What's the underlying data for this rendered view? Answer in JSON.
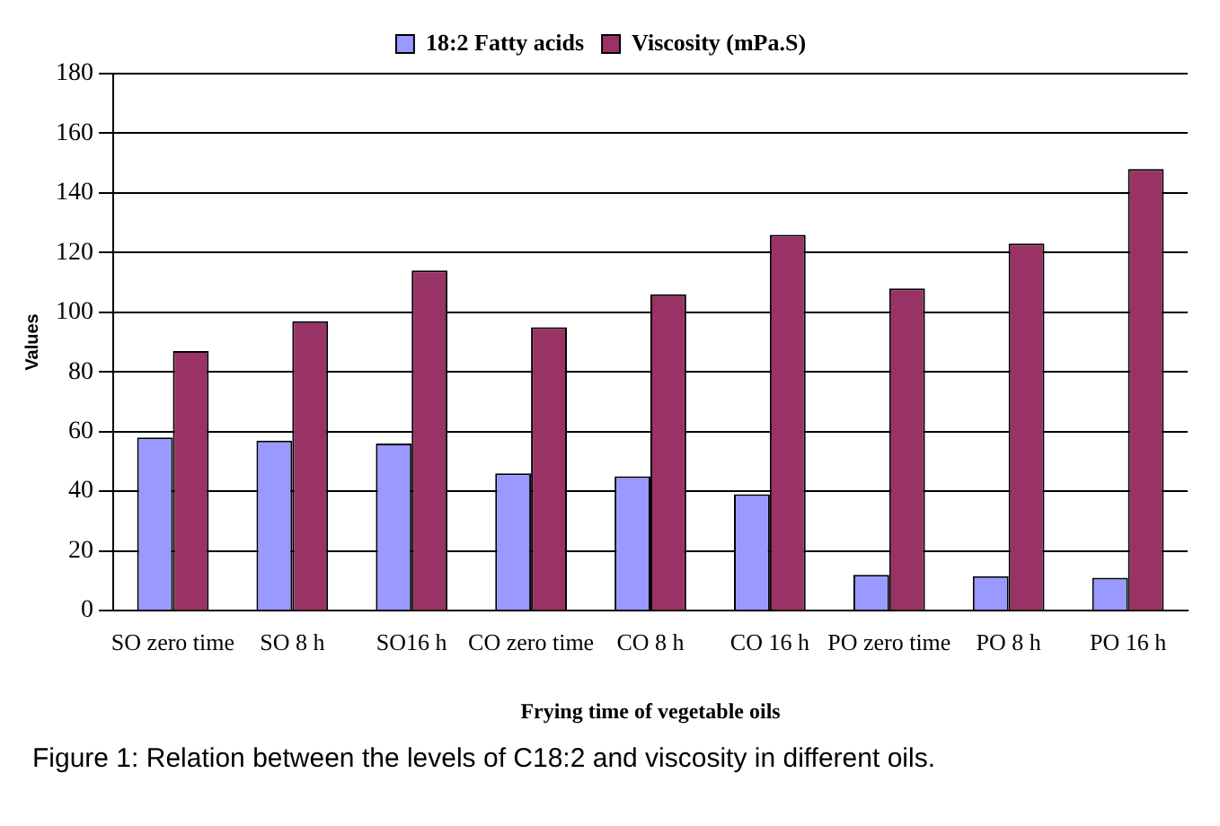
{
  "chart_data": {
    "type": "bar",
    "categories": [
      "SO zero time",
      "SO 8 h",
      "SO16 h",
      "CO zero time",
      "CO 8 h",
      "CO 16 h",
      "PO zero time",
      "PO 8 h",
      "PO 16 h"
    ],
    "series": [
      {
        "name": "18:2 Fatty acids",
        "color": "#9999ff",
        "values": [
          58,
          57,
          56,
          46,
          45,
          39,
          12,
          11.5,
          11
        ]
      },
      {
        "name": "Viscosity (mPa.S)",
        "color": "#993366",
        "values": [
          87,
          97,
          114,
          95,
          106,
          126,
          108,
          123,
          148
        ]
      }
    ],
    "xlabel": "Frying time of vegetable oils",
    "ylabel": "Values",
    "ylim": [
      0,
      180
    ],
    "yticks": [
      0,
      20,
      40,
      60,
      80,
      100,
      120,
      140,
      160,
      180
    ],
    "grid": "y",
    "legend": "top",
    "annotations": [
      "Figure 1: Relation between the levels of C18:2 and viscosity in different oils."
    ]
  }
}
